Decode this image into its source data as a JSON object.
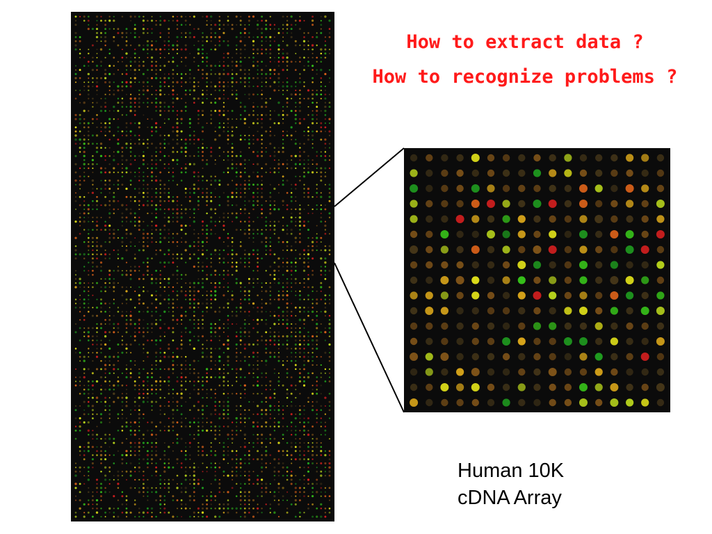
{
  "slide": {
    "questions": [
      "How to extract data ?",
      "How to recognize problems ?"
    ],
    "caption": {
      "line1": "Human 10K",
      "line2": "cDNA Array"
    }
  },
  "figure": {
    "background_color": "#0b0b0b",
    "spot_palette": [
      "#1f9c1f",
      "#37c41a",
      "#b6d11c",
      "#e6e61a",
      "#d9a51a",
      "#e0641a",
      "#d61f1f",
      "#8a5a1a",
      "#4a3a1a"
    ],
    "full_array": {
      "spot_columns": 61,
      "spot_rows": 123
    },
    "zoomed_region": {
      "spot_columns": 17,
      "spot_rows": 17
    }
  }
}
